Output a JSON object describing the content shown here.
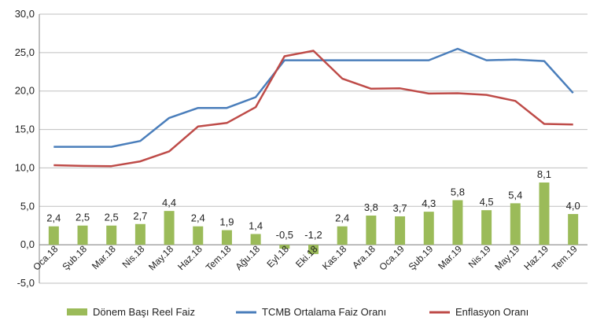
{
  "chart_data": {
    "type": "bar",
    "title": "",
    "xlabel": "",
    "ylabel": "",
    "ylim": [
      -5,
      30
    ],
    "yticks": [
      "-5,0",
      "0,0",
      "5,0",
      "10,0",
      "15,0",
      "20,0",
      "25,0",
      "30,0"
    ],
    "grid": true,
    "legend_position": "bottom",
    "categories": [
      "Oca.18",
      "Şub.18",
      "Mar.18",
      "Nis.18",
      "May.18",
      "Haz.18",
      "Tem.18",
      "Ağu.18",
      "Eyl.18",
      "Eki.18",
      "Kas.18",
      "Ara.18",
      "Oca.19",
      "Şub.19",
      "Mar.19",
      "Nis.19",
      "May.19",
      "Haz.19",
      "Tem.19"
    ],
    "series": [
      {
        "name": "Dönem Başı Reel Faiz",
        "kind": "bar",
        "color": "#9bbb59",
        "values": [
          2.4,
          2.5,
          2.5,
          2.7,
          4.4,
          2.4,
          1.9,
          1.4,
          -0.5,
          -1.2,
          2.4,
          3.8,
          3.7,
          4.3,
          5.8,
          4.5,
          5.4,
          8.1,
          4.0
        ],
        "labels": [
          "2,4",
          "2,5",
          "2,5",
          "2,7",
          "4,4",
          "2,4",
          "1,9",
          "1,4",
          "-0,5",
          "-1,2",
          "2,4",
          "3,8",
          "3,7",
          "4,3",
          "5,8",
          "4,5",
          "5,4",
          "8,1",
          "4,0"
        ]
      },
      {
        "name": "TCMB Ortalama Faiz Oranı",
        "kind": "line",
        "color": "#4a7ebb",
        "values": [
          12.75,
          12.75,
          12.75,
          13.5,
          16.5,
          17.8,
          17.8,
          19.2,
          24.0,
          24.0,
          24.0,
          24.0,
          24.0,
          24.0,
          25.5,
          24.0,
          24.1,
          23.9,
          19.75
        ]
      },
      {
        "name": "Enflasyon Oranı",
        "kind": "line",
        "color": "#be4b48",
        "values": [
          10.35,
          10.26,
          10.23,
          10.85,
          12.15,
          15.39,
          15.85,
          17.9,
          24.52,
          25.24,
          21.62,
          20.3,
          20.35,
          19.67,
          19.71,
          19.5,
          18.71,
          15.72,
          15.65
        ]
      }
    ]
  }
}
